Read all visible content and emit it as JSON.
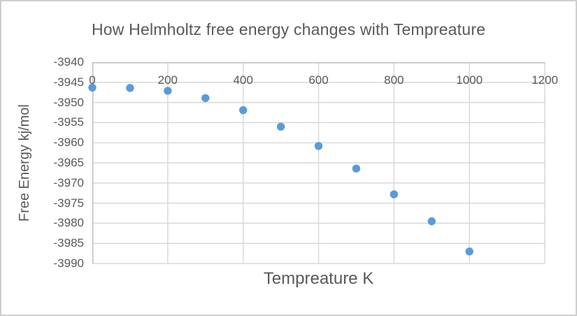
{
  "chart_data": {
    "type": "scatter",
    "title": "How Helmholtz free energy changes with Tempreature",
    "xlabel": "Tempreature K",
    "ylabel": "Free Energy kj/mol",
    "x": [
      0,
      100,
      200,
      300,
      400,
      500,
      600,
      700,
      800,
      900,
      1000
    ],
    "y": [
      -3946.3,
      -3946.4,
      -3947.1,
      -3948.9,
      -3951.9,
      -3956.0,
      -3960.8,
      -3966.4,
      -3972.8,
      -3979.5,
      -3987.0
    ],
    "xlim": [
      0,
      1200
    ],
    "ylim": [
      -3990,
      -3940
    ],
    "x_ticks": [
      0,
      200,
      400,
      600,
      800,
      1000,
      1200
    ],
    "y_ticks": [
      -3940,
      -3945,
      -3950,
      -3955,
      -3960,
      -3965,
      -3970,
      -3975,
      -3980,
      -3985,
      -3990
    ],
    "grid": true,
    "legend": "none",
    "x_tick_labels_position": "top",
    "marker": {
      "shape": "circle",
      "radius_px": 5.7
    }
  },
  "colors": {
    "text": "#595959",
    "gridline": "#D9D9D9",
    "axis_line": "#BFBFBF",
    "marker": "#5B9BD5",
    "background": "#FFFFFF",
    "frame_border": "#CFCFCF"
  }
}
